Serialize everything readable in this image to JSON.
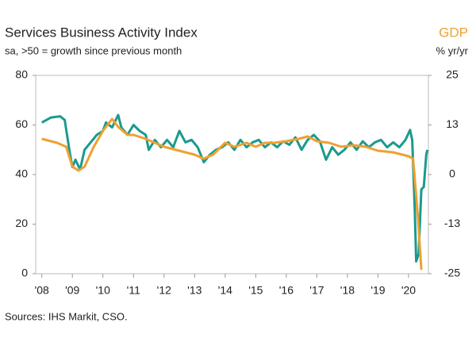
{
  "chart_data": {
    "type": "line",
    "title": "Services Business Activity Index",
    "subtitle": "sa, >50 = growth since previous month",
    "y2_title": "GDP",
    "y2_subtitle": "% yr/yr",
    "source": "Sources: IHS Markit, CSO.",
    "xlim": [
      2007.8,
      2020.65
    ],
    "xticks": [
      {
        "value": 2008,
        "label": "'08"
      },
      {
        "value": 2009,
        "label": "'09"
      },
      {
        "value": 2010,
        "label": "'10"
      },
      {
        "value": 2011,
        "label": "'11"
      },
      {
        "value": 2012,
        "label": "'12"
      },
      {
        "value": 2013,
        "label": "'13"
      },
      {
        "value": 2014,
        "label": "'14"
      },
      {
        "value": 2015,
        "label": "'15"
      },
      {
        "value": 2016,
        "label": "'16"
      },
      {
        "value": 2017,
        "label": "'17"
      },
      {
        "value": 2018,
        "label": "'18"
      },
      {
        "value": 2019,
        "label": "'19"
      },
      {
        "value": 2020,
        "label": "'20"
      }
    ],
    "ylim": [
      0,
      80
    ],
    "yticks": [
      0,
      20,
      40,
      60,
      80
    ],
    "y2lim": [
      -25,
      25
    ],
    "y2ticks": [
      {
        "value": -25,
        "label": "-25"
      },
      {
        "value": -12.5,
        "label": "-13"
      },
      {
        "value": 0,
        "label": "0"
      },
      {
        "value": 12.5,
        "label": "13"
      },
      {
        "value": 25,
        "label": "25"
      }
    ],
    "series": [
      {
        "color": "#1a9a8e",
        "axis": "y",
        "x": [
          2008.0,
          2008.3,
          2008.6,
          2008.75,
          2008.9,
          2009.0,
          2009.1,
          2009.25,
          2009.4,
          2009.6,
          2009.8,
          2010.0,
          2010.1,
          2010.3,
          2010.5,
          2010.6,
          2010.8,
          2011.0,
          2011.2,
          2011.4,
          2011.5,
          2011.7,
          2011.9,
          2012.1,
          2012.3,
          2012.5,
          2012.7,
          2012.9,
          2013.1,
          2013.3,
          2013.5,
          2013.7,
          2013.9,
          2014.1,
          2014.3,
          2014.5,
          2014.7,
          2014.9,
          2015.1,
          2015.3,
          2015.5,
          2015.7,
          2015.9,
          2016.1,
          2016.3,
          2016.5,
          2016.7,
          2016.9,
          2017.1,
          2017.3,
          2017.5,
          2017.7,
          2017.9,
          2018.1,
          2018.3,
          2018.5,
          2018.7,
          2018.9,
          2019.1,
          2019.3,
          2019.5,
          2019.7,
          2019.9,
          2020.05,
          2020.12,
          2020.2,
          2020.25,
          2020.33,
          2020.42,
          2020.5,
          2020.58,
          2020.62
        ],
        "values": [
          61,
          63,
          63.5,
          62,
          50,
          43,
          46,
          42,
          50,
          53,
          56,
          57.6,
          61,
          59,
          64,
          59,
          56,
          60,
          57.6,
          56,
          50,
          54,
          51,
          54,
          51,
          57.6,
          53,
          54,
          51,
          45,
          48,
          50,
          51,
          53,
          50,
          54,
          51,
          53,
          54,
          51,
          53,
          51,
          53.4,
          52,
          55,
          50,
          54,
          56,
          53.4,
          46,
          51,
          48,
          50,
          53,
          50,
          53.4,
          51,
          53,
          54,
          51,
          53,
          51,
          54,
          58,
          54,
          27,
          5,
          8,
          34,
          35,
          48,
          50
        ]
      },
      {
        "color": "#f0a030",
        "axis": "y2",
        "x": [
          2008.0,
          2008.5,
          2008.8,
          2009.0,
          2009.2,
          2009.4,
          2009.7,
          2010.0,
          2010.3,
          2010.5,
          2010.8,
          2011.0,
          2011.4,
          2011.7,
          2012.0,
          2012.5,
          2013.0,
          2013.3,
          2013.6,
          2014.0,
          2014.3,
          2014.7,
          2015.0,
          2015.3,
          2015.6,
          2016.0,
          2016.4,
          2016.7,
          2017.0,
          2017.4,
          2017.8,
          2018.2,
          2018.6,
          2019.0,
          2019.5,
          2020.0,
          2020.15,
          2020.3,
          2020.42
        ],
        "values": [
          9,
          8,
          7,
          2,
          1,
          2,
          7,
          11,
          14,
          12,
          10,
          10,
          9,
          8,
          7,
          6,
          5,
          4,
          5,
          8,
          7,
          8,
          7,
          8,
          8,
          8.4,
          9,
          9.6,
          8.4,
          8,
          7,
          7.4,
          7,
          6,
          5.6,
          4.6,
          4,
          -10,
          -24
        ]
      }
    ]
  }
}
